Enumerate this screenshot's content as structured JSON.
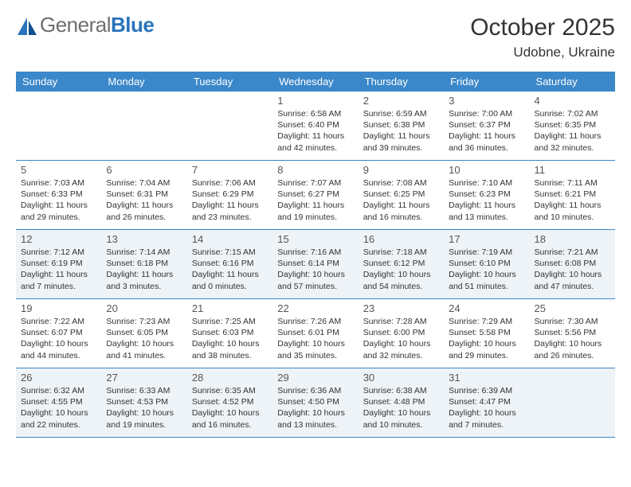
{
  "logo": {
    "word1": "General",
    "word2": "Blue"
  },
  "title": "October 2025",
  "location": "Udobne, Ukraine",
  "colors": {
    "header_bg": "#3a87c9",
    "header_text": "#ffffff",
    "shaded_bg": "#eef3f7",
    "page_bg": "#ffffff",
    "text": "#333333",
    "logo_gray": "#6f6f6f",
    "logo_blue": "#2a74bb",
    "border": "#3a87c9"
  },
  "typography": {
    "title_fontsize": 30,
    "location_fontsize": 17,
    "dow_fontsize": 13,
    "daynum_fontsize": 13,
    "body_fontsize": 10.5
  },
  "daysOfWeek": [
    "Sunday",
    "Monday",
    "Tuesday",
    "Wednesday",
    "Thursday",
    "Friday",
    "Saturday"
  ],
  "weeks": [
    [
      {
        "num": "",
        "lines": [],
        "shaded": false
      },
      {
        "num": "",
        "lines": [],
        "shaded": false
      },
      {
        "num": "",
        "lines": [],
        "shaded": false
      },
      {
        "num": "1",
        "lines": [
          "Sunrise: 6:58 AM",
          "Sunset: 6:40 PM",
          "Daylight: 11 hours",
          "and 42 minutes."
        ],
        "shaded": false
      },
      {
        "num": "2",
        "lines": [
          "Sunrise: 6:59 AM",
          "Sunset: 6:38 PM",
          "Daylight: 11 hours",
          "and 39 minutes."
        ],
        "shaded": false
      },
      {
        "num": "3",
        "lines": [
          "Sunrise: 7:00 AM",
          "Sunset: 6:37 PM",
          "Daylight: 11 hours",
          "and 36 minutes."
        ],
        "shaded": false
      },
      {
        "num": "4",
        "lines": [
          "Sunrise: 7:02 AM",
          "Sunset: 6:35 PM",
          "Daylight: 11 hours",
          "and 32 minutes."
        ],
        "shaded": false
      }
    ],
    [
      {
        "num": "5",
        "lines": [
          "Sunrise: 7:03 AM",
          "Sunset: 6:33 PM",
          "Daylight: 11 hours",
          "and 29 minutes."
        ],
        "shaded": false
      },
      {
        "num": "6",
        "lines": [
          "Sunrise: 7:04 AM",
          "Sunset: 6:31 PM",
          "Daylight: 11 hours",
          "and 26 minutes."
        ],
        "shaded": false
      },
      {
        "num": "7",
        "lines": [
          "Sunrise: 7:06 AM",
          "Sunset: 6:29 PM",
          "Daylight: 11 hours",
          "and 23 minutes."
        ],
        "shaded": false
      },
      {
        "num": "8",
        "lines": [
          "Sunrise: 7:07 AM",
          "Sunset: 6:27 PM",
          "Daylight: 11 hours",
          "and 19 minutes."
        ],
        "shaded": false
      },
      {
        "num": "9",
        "lines": [
          "Sunrise: 7:08 AM",
          "Sunset: 6:25 PM",
          "Daylight: 11 hours",
          "and 16 minutes."
        ],
        "shaded": false
      },
      {
        "num": "10",
        "lines": [
          "Sunrise: 7:10 AM",
          "Sunset: 6:23 PM",
          "Daylight: 11 hours",
          "and 13 minutes."
        ],
        "shaded": false
      },
      {
        "num": "11",
        "lines": [
          "Sunrise: 7:11 AM",
          "Sunset: 6:21 PM",
          "Daylight: 11 hours",
          "and 10 minutes."
        ],
        "shaded": false
      }
    ],
    [
      {
        "num": "12",
        "lines": [
          "Sunrise: 7:12 AM",
          "Sunset: 6:19 PM",
          "Daylight: 11 hours",
          "and 7 minutes."
        ],
        "shaded": true
      },
      {
        "num": "13",
        "lines": [
          "Sunrise: 7:14 AM",
          "Sunset: 6:18 PM",
          "Daylight: 11 hours",
          "and 3 minutes."
        ],
        "shaded": true
      },
      {
        "num": "14",
        "lines": [
          "Sunrise: 7:15 AM",
          "Sunset: 6:16 PM",
          "Daylight: 11 hours",
          "and 0 minutes."
        ],
        "shaded": true
      },
      {
        "num": "15",
        "lines": [
          "Sunrise: 7:16 AM",
          "Sunset: 6:14 PM",
          "Daylight: 10 hours",
          "and 57 minutes."
        ],
        "shaded": true
      },
      {
        "num": "16",
        "lines": [
          "Sunrise: 7:18 AM",
          "Sunset: 6:12 PM",
          "Daylight: 10 hours",
          "and 54 minutes."
        ],
        "shaded": true
      },
      {
        "num": "17",
        "lines": [
          "Sunrise: 7:19 AM",
          "Sunset: 6:10 PM",
          "Daylight: 10 hours",
          "and 51 minutes."
        ],
        "shaded": true
      },
      {
        "num": "18",
        "lines": [
          "Sunrise: 7:21 AM",
          "Sunset: 6:08 PM",
          "Daylight: 10 hours",
          "and 47 minutes."
        ],
        "shaded": true
      }
    ],
    [
      {
        "num": "19",
        "lines": [
          "Sunrise: 7:22 AM",
          "Sunset: 6:07 PM",
          "Daylight: 10 hours",
          "and 44 minutes."
        ],
        "shaded": false
      },
      {
        "num": "20",
        "lines": [
          "Sunrise: 7:23 AM",
          "Sunset: 6:05 PM",
          "Daylight: 10 hours",
          "and 41 minutes."
        ],
        "shaded": false
      },
      {
        "num": "21",
        "lines": [
          "Sunrise: 7:25 AM",
          "Sunset: 6:03 PM",
          "Daylight: 10 hours",
          "and 38 minutes."
        ],
        "shaded": false
      },
      {
        "num": "22",
        "lines": [
          "Sunrise: 7:26 AM",
          "Sunset: 6:01 PM",
          "Daylight: 10 hours",
          "and 35 minutes."
        ],
        "shaded": false
      },
      {
        "num": "23",
        "lines": [
          "Sunrise: 7:28 AM",
          "Sunset: 6:00 PM",
          "Daylight: 10 hours",
          "and 32 minutes."
        ],
        "shaded": false
      },
      {
        "num": "24",
        "lines": [
          "Sunrise: 7:29 AM",
          "Sunset: 5:58 PM",
          "Daylight: 10 hours",
          "and 29 minutes."
        ],
        "shaded": false
      },
      {
        "num": "25",
        "lines": [
          "Sunrise: 7:30 AM",
          "Sunset: 5:56 PM",
          "Daylight: 10 hours",
          "and 26 minutes."
        ],
        "shaded": false
      }
    ],
    [
      {
        "num": "26",
        "lines": [
          "Sunrise: 6:32 AM",
          "Sunset: 4:55 PM",
          "Daylight: 10 hours",
          "and 22 minutes."
        ],
        "shaded": true
      },
      {
        "num": "27",
        "lines": [
          "Sunrise: 6:33 AM",
          "Sunset: 4:53 PM",
          "Daylight: 10 hours",
          "and 19 minutes."
        ],
        "shaded": true
      },
      {
        "num": "28",
        "lines": [
          "Sunrise: 6:35 AM",
          "Sunset: 4:52 PM",
          "Daylight: 10 hours",
          "and 16 minutes."
        ],
        "shaded": true
      },
      {
        "num": "29",
        "lines": [
          "Sunrise: 6:36 AM",
          "Sunset: 4:50 PM",
          "Daylight: 10 hours",
          "and 13 minutes."
        ],
        "shaded": true
      },
      {
        "num": "30",
        "lines": [
          "Sunrise: 6:38 AM",
          "Sunset: 4:48 PM",
          "Daylight: 10 hours",
          "and 10 minutes."
        ],
        "shaded": true
      },
      {
        "num": "31",
        "lines": [
          "Sunrise: 6:39 AM",
          "Sunset: 4:47 PM",
          "Daylight: 10 hours",
          "and 7 minutes."
        ],
        "shaded": true
      },
      {
        "num": "",
        "lines": [],
        "shaded": true
      }
    ]
  ]
}
